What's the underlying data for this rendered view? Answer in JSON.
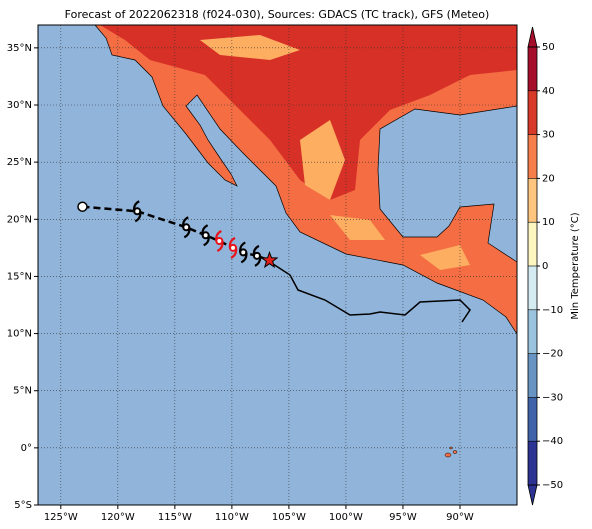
{
  "map": {
    "title": "Forecast of 2022062318 (f024-030), Sources: GDACS (TC track), GFS (Meteo)",
    "xlim": [
      -127,
      -85
    ],
    "ylim": [
      -5,
      37
    ],
    "grid": true,
    "xticks": [
      {
        "value": -125,
        "label": "125°W"
      },
      {
        "value": -120,
        "label": "120°W"
      },
      {
        "value": -115,
        "label": "115°W"
      },
      {
        "value": -110,
        "label": "110°W"
      },
      {
        "value": -105,
        "label": "105°W"
      },
      {
        "value": -100,
        "label": "100°W"
      },
      {
        "value": -95,
        "label": "95°W"
      },
      {
        "value": -90,
        "label": "90°W"
      }
    ],
    "yticks": [
      {
        "value": -5,
        "label": "5°S"
      },
      {
        "value": 0,
        "label": "0°"
      },
      {
        "value": 5,
        "label": "5°N"
      },
      {
        "value": 10,
        "label": "10°N"
      },
      {
        "value": 15,
        "label": "15°N"
      },
      {
        "value": 20,
        "label": "20°N"
      },
      {
        "value": 25,
        "label": "25°N"
      },
      {
        "value": 30,
        "label": "30°N"
      },
      {
        "value": 35,
        "label": "35°N"
      }
    ],
    "track": [
      {
        "lon": -123.1,
        "lat": 21.1,
        "marker": "circle",
        "color": "#000000"
      },
      {
        "lon": -118.3,
        "lat": 20.7,
        "marker": "hurricane",
        "color": "#000000"
      },
      {
        "lon": -114.0,
        "lat": 19.3,
        "marker": "hurricane",
        "color": "#000000"
      },
      {
        "lon": -112.3,
        "lat": 18.6,
        "marker": "hurricane",
        "color": "#000000"
      },
      {
        "lon": -111.1,
        "lat": 18.1,
        "marker": "hurricane",
        "color": "#e8141c"
      },
      {
        "lon": -109.9,
        "lat": 17.5,
        "marker": "hurricane",
        "color": "#e8141c"
      },
      {
        "lon": -109.0,
        "lat": 17.1,
        "marker": "hurricane",
        "color": "#000000"
      },
      {
        "lon": -107.8,
        "lat": 16.8,
        "marker": "hurricane",
        "color": "#000000"
      },
      {
        "lon": -106.7,
        "lat": 16.4,
        "marker": "star",
        "color": "#e0201b"
      }
    ]
  },
  "colorbar": {
    "label": "Min Temperature (°C)",
    "ticks": [
      {
        "value": -50,
        "label": "−50"
      },
      {
        "value": -40,
        "label": "−40"
      },
      {
        "value": -30,
        "label": "−30"
      },
      {
        "value": -20,
        "label": "−20"
      },
      {
        "value": -10,
        "label": "−10"
      },
      0,
      10,
      20,
      30,
      40,
      50
    ],
    "colors": [
      "#2c3393",
      "#3f63ab",
      "#6894c4",
      "#9ac3de",
      "#d4ebf2",
      "#fdf6c0",
      "#fdc57d",
      "#f57e4a",
      "#d83a2a",
      "#a60f2b"
    ],
    "extend": "both"
  }
}
